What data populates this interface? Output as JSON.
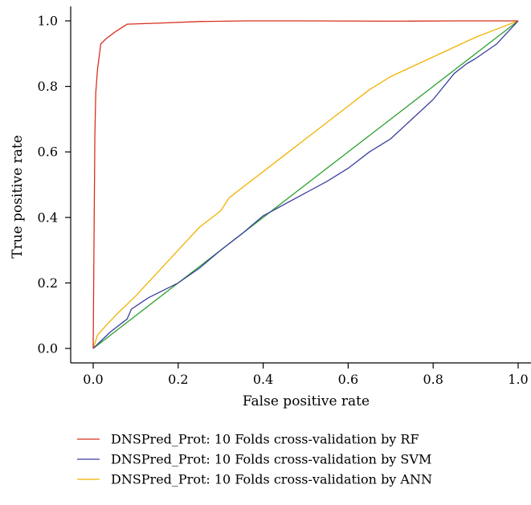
{
  "chart_data": {
    "type": "line",
    "title": "",
    "xlabel": "False positive rate",
    "ylabel": "True positive rate",
    "xlim": [
      0,
      1
    ],
    "ylim": [
      0,
      1
    ],
    "xticks": [
      "0.0",
      "0.2",
      "0.4",
      "0.6",
      "0.8",
      "1.0"
    ],
    "yticks": [
      "0.0",
      "0.2",
      "0.4",
      "0.6",
      "0.8",
      "1.0"
    ],
    "grid": false,
    "legend_position": "bottom",
    "series": [
      {
        "name": "DNSPred_Prot: 10 Folds cross-validation by RF",
        "color": "#d7301f",
        "points": [
          [
            0,
            0
          ],
          [
            0.002,
            0.35
          ],
          [
            0.004,
            0.65
          ],
          [
            0.006,
            0.78
          ],
          [
            0.01,
            0.85
          ],
          [
            0.018,
            0.93
          ],
          [
            0.03,
            0.945
          ],
          [
            0.05,
            0.965
          ],
          [
            0.08,
            0.99
          ],
          [
            0.15,
            0.993
          ],
          [
            0.25,
            0.998
          ],
          [
            0.36,
            1.0
          ],
          [
            0.5,
            1.0
          ],
          [
            0.7,
            0.999
          ],
          [
            0.85,
            1.0
          ],
          [
            1.0,
            1.0
          ]
        ]
      },
      {
        "name": "DNSPred_Prot: 10 Folds cross-validation by SVM",
        "color": "#3b3fa0",
        "points": [
          [
            0,
            0
          ],
          [
            0.04,
            0.05
          ],
          [
            0.08,
            0.09
          ],
          [
            0.09,
            0.12
          ],
          [
            0.13,
            0.155
          ],
          [
            0.2,
            0.2
          ],
          [
            0.25,
            0.245
          ],
          [
            0.3,
            0.3
          ],
          [
            0.35,
            0.35
          ],
          [
            0.4,
            0.405
          ],
          [
            0.45,
            0.44
          ],
          [
            0.5,
            0.475
          ],
          [
            0.55,
            0.51
          ],
          [
            0.6,
            0.55
          ],
          [
            0.65,
            0.6
          ],
          [
            0.7,
            0.64
          ],
          [
            0.75,
            0.7
          ],
          [
            0.8,
            0.76
          ],
          [
            0.85,
            0.84
          ],
          [
            0.88,
            0.87
          ],
          [
            0.9,
            0.885
          ],
          [
            0.95,
            0.93
          ],
          [
            1.0,
            1.0
          ]
        ]
      },
      {
        "name": "DNSPred_Prot: 10 Folds cross-validation by ANN",
        "color": "#f2b200",
        "points": [
          [
            0,
            0
          ],
          [
            0.01,
            0.04
          ],
          [
            0.03,
            0.07
          ],
          [
            0.06,
            0.11
          ],
          [
            0.1,
            0.16
          ],
          [
            0.15,
            0.23
          ],
          [
            0.2,
            0.3
          ],
          [
            0.25,
            0.37
          ],
          [
            0.3,
            0.42
          ],
          [
            0.32,
            0.46
          ],
          [
            0.36,
            0.5
          ],
          [
            0.4,
            0.54
          ],
          [
            0.45,
            0.59
          ],
          [
            0.5,
            0.64
          ],
          [
            0.55,
            0.69
          ],
          [
            0.6,
            0.74
          ],
          [
            0.65,
            0.79
          ],
          [
            0.7,
            0.83
          ],
          [
            0.75,
            0.86
          ],
          [
            0.8,
            0.89
          ],
          [
            0.85,
            0.92
          ],
          [
            0.9,
            0.95
          ],
          [
            0.95,
            0.975
          ],
          [
            1.0,
            1.0
          ]
        ]
      },
      {
        "name": "",
        "color": "#2ca02c",
        "points": [
          [
            0,
            0
          ],
          [
            1,
            1
          ]
        ]
      }
    ]
  }
}
